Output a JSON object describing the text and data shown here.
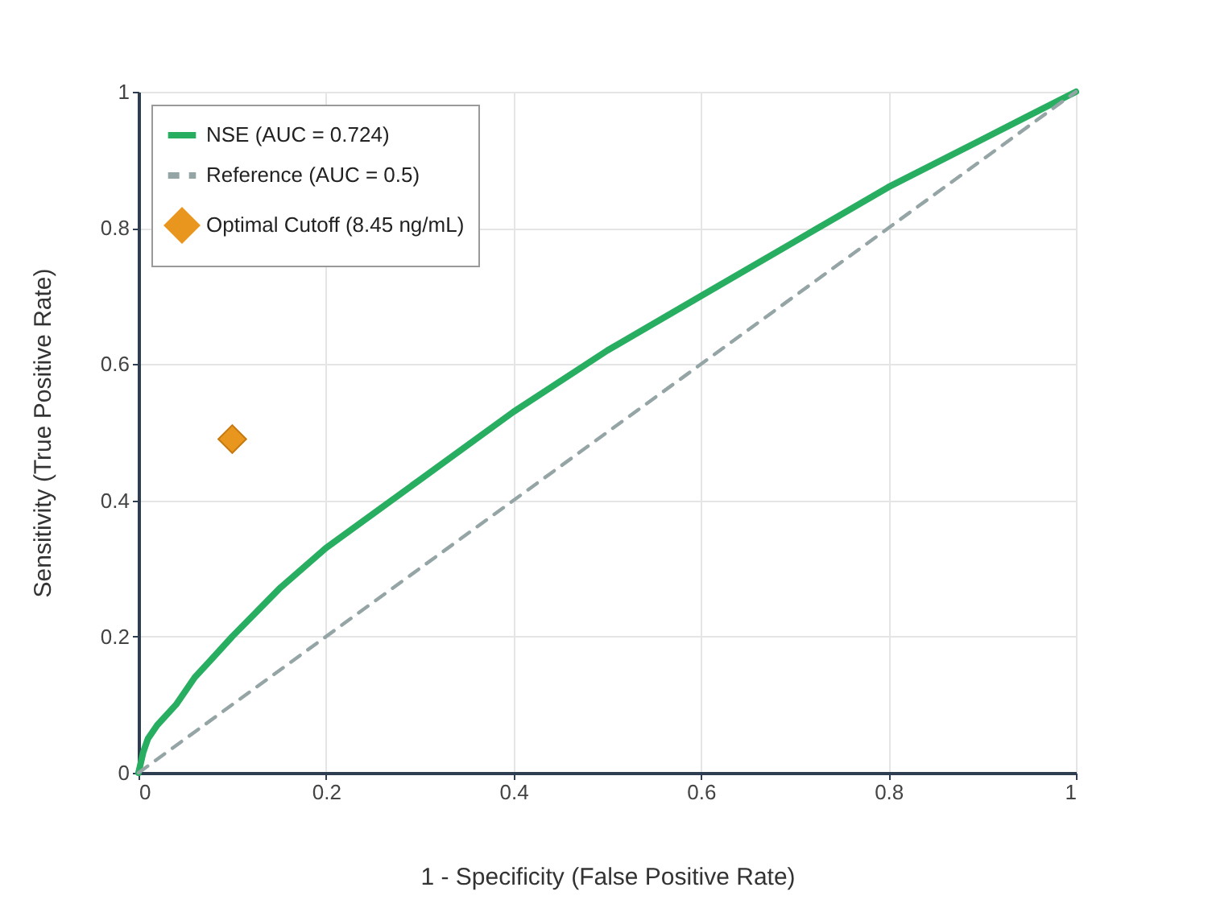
{
  "chart_data": {
    "type": "line",
    "xlabel": "1 - Specificity (False Positive Rate)",
    "ylabel": "Sensitivity (True Positive Rate)",
    "xlim": [
      0,
      1
    ],
    "ylim": [
      0,
      1
    ],
    "xticks": [
      0,
      0.2,
      0.4,
      0.6,
      0.8,
      1
    ],
    "yticks": [
      0,
      0.2,
      0.4,
      0.6,
      0.8,
      1
    ],
    "grid": true,
    "legend": "top left",
    "series": [
      {
        "name": "NSE (AUC = 0.724)",
        "color": "#27ae60",
        "line_style": "solid",
        "x": [
          0,
          0.005,
          0.01,
          0.02,
          0.04,
          0.06,
          0.08,
          0.1,
          0.15,
          0.2,
          0.25,
          0.3,
          0.4,
          0.5,
          0.6,
          0.7,
          0.8,
          0.9,
          1
        ],
        "values": [
          0,
          0.03,
          0.05,
          0.07,
          0.1,
          0.14,
          0.17,
          0.2,
          0.27,
          0.33,
          0.38,
          0.43,
          0.53,
          0.62,
          0.7,
          0.78,
          0.86,
          0.93,
          1
        ]
      },
      {
        "name": "Reference (AUC = 0.5)",
        "type": "line",
        "color": "#95a5a6",
        "line_style": "dashed",
        "x": [
          0,
          1
        ],
        "values": [
          0,
          1
        ]
      },
      {
        "name": "Optimal Cutoff (8.45 ng/mL)",
        "type": "scatter",
        "color": "#e8961e",
        "marker": "diamond",
        "x": [
          0.1
        ],
        "values": [
          0.49
        ]
      }
    ]
  }
}
